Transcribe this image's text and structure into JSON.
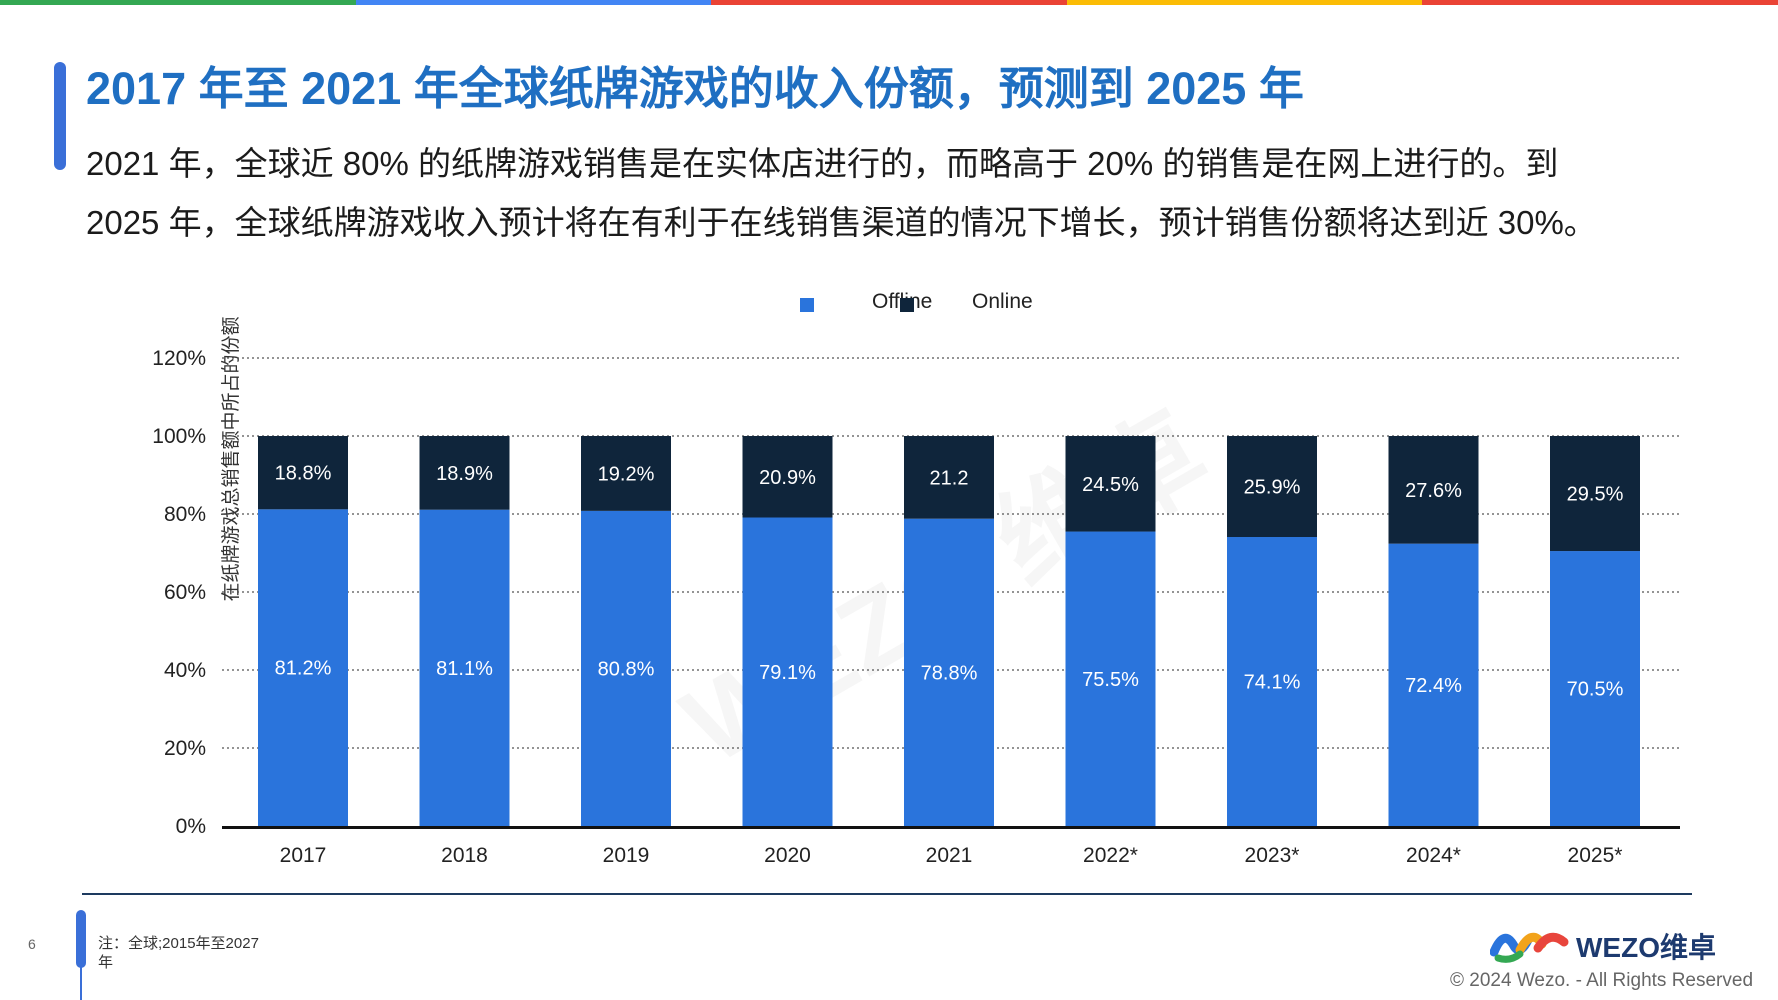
{
  "topbar_colors": [
    "#34a853",
    "#4285f4",
    "#ea4335",
    "#fbbc05",
    "#ea4335"
  ],
  "colors": {
    "offline": "#2a74dc",
    "online": "#0f253b",
    "title": "#1f6fc2"
  },
  "title": "2017 年至 2021 年全球纸牌游戏的收入份额，预测到 2025 年",
  "description": [
    "2021 年，全球近 80% 的纸牌游戏销售是在实体店进行的，而略高于 20% 的销售是在网上进行的。到",
    "2025 年，全球纸牌游戏收入预计将在有利于在线销售渠道的情况下增长，预计销售份额将达到近 30%。"
  ],
  "legend": [
    {
      "label": "Offline",
      "color": "#2a74dc"
    },
    {
      "label": "Online",
      "color": "#0f253b"
    }
  ],
  "chart_data": {
    "type": "bar",
    "stacked": true,
    "categories": [
      "2017",
      "2018",
      "2019",
      "2020",
      "2021",
      "2022*",
      "2023*",
      "2024*",
      "2025*"
    ],
    "series": [
      {
        "name": "Offline",
        "values": [
          81.2,
          81.1,
          80.8,
          79.1,
          78.8,
          75.5,
          74.1,
          72.4,
          70.5
        ],
        "labels": [
          "81.2%",
          "81.1%",
          "80.8%",
          "79.1%",
          "78.8%",
          "75.5%",
          "74.1%",
          "72.4%",
          "70.5%"
        ]
      },
      {
        "name": "Online",
        "values": [
          18.8,
          18.9,
          19.2,
          20.9,
          21.2,
          24.5,
          25.9,
          27.6,
          29.5
        ],
        "labels": [
          "18.8%",
          "18.9%",
          "19.2%",
          "20.9%",
          "21.2",
          "24.5%",
          "25.9%",
          "27.6%",
          "29.5%"
        ]
      }
    ],
    "ylabel": "在纸牌游戏总销售额中所占的份额",
    "yticks": [
      "0%",
      "20%",
      "40%",
      "60%",
      "80%",
      "100%",
      "120%"
    ],
    "ylim": [
      0,
      120
    ],
    "grid": true,
    "legend_position": "top-center"
  },
  "watermark": "WEZO 维卓",
  "footer": {
    "page_number": "6",
    "note": "注：全球;2015年至2027年",
    "logo_text": "WEZO维卓",
    "copyright": "© 2024 Wezo. - All Rights Reserved"
  }
}
